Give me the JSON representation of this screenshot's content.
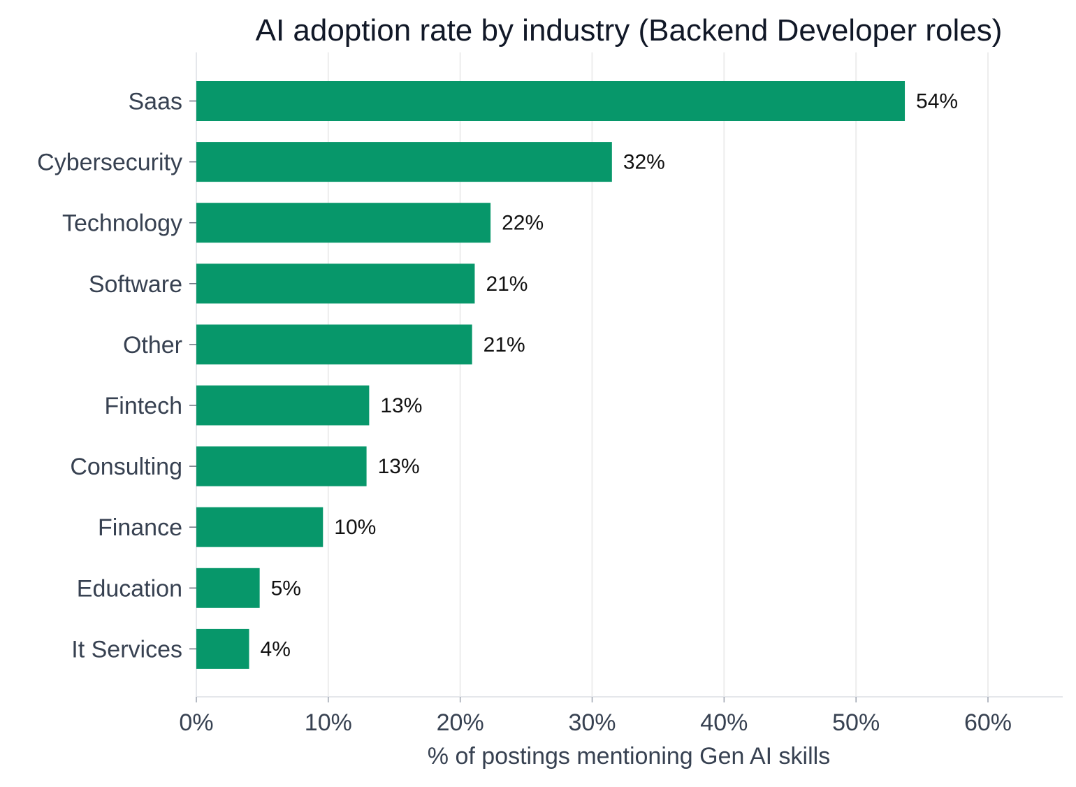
{
  "chart_data": {
    "type": "bar",
    "orientation": "horizontal",
    "title": "AI adoption rate by industry (Backend Developer roles)",
    "xlabel": "% of postings mentioning Gen AI skills",
    "ylabel": "",
    "categories": [
      "Saas",
      "Cybersecurity",
      "Technology",
      "Software",
      "Other",
      "Fintech",
      "Consulting",
      "Finance",
      "Education",
      "It Services"
    ],
    "values": [
      53.7,
      31.5,
      22.3,
      21.1,
      20.9,
      13.1,
      12.9,
      9.6,
      4.8,
      4.0
    ],
    "value_labels": [
      "54%",
      "32%",
      "22%",
      "21%",
      "21%",
      "13%",
      "13%",
      "10%",
      "5%",
      "4%"
    ],
    "xlim": [
      0,
      65
    ],
    "xticks": [
      0,
      10,
      20,
      30,
      40,
      50,
      60
    ],
    "xtick_labels": [
      "0%",
      "10%",
      "20%",
      "30%",
      "40%",
      "50%",
      "60%"
    ],
    "grid": "vertical",
    "bar_color": "#07976a"
  }
}
